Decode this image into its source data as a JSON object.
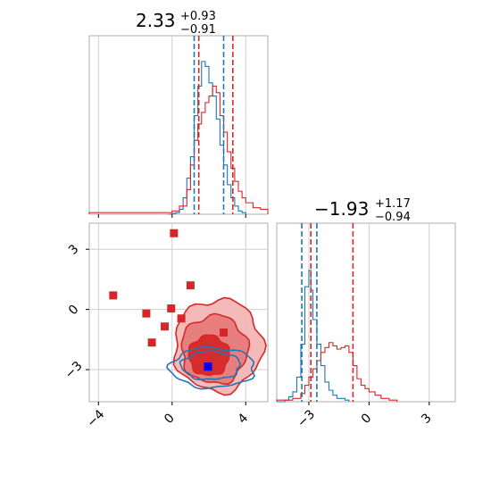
{
  "chart_data": {
    "type": "corner",
    "colors": {
      "series_a": "#1f77b4",
      "series_b": "#d62728",
      "grid": "#cfcfcf",
      "axis": "#000000"
    },
    "series": [],
    "panels": {
      "p1": {
        "type": "histogram",
        "xlim": [
          -4.5,
          5.2
        ],
        "grid_x": [
          -4,
          0,
          4
        ],
        "title": {
          "main": "2.33",
          "sup": "+0.93",
          "sub": "−0.91"
        },
        "quantile_lines_blue": [
          1.2,
          2.8
        ],
        "quantile_lines_red": [
          1.45,
          3.3
        ],
        "hist_blue": [
          [
            -0.2,
            0
          ],
          [
            0.0,
            0.005
          ],
          [
            0.2,
            0.01
          ],
          [
            0.4,
            0.03
          ],
          [
            0.6,
            0.1
          ],
          [
            0.8,
            0.22
          ],
          [
            1.0,
            0.35
          ],
          [
            1.2,
            0.6
          ],
          [
            1.4,
            0.78
          ],
          [
            1.6,
            0.93
          ],
          [
            1.8,
            0.9
          ],
          [
            2.0,
            0.8
          ],
          [
            2.2,
            0.72
          ],
          [
            2.4,
            0.58
          ],
          [
            2.6,
            0.42
          ],
          [
            2.8,
            0.3
          ],
          [
            3.0,
            0.18
          ],
          [
            3.2,
            0.1
          ],
          [
            3.4,
            0.05
          ],
          [
            3.6,
            0.02
          ],
          [
            3.8,
            0.01
          ],
          [
            4.0,
            0
          ]
        ],
        "hist_red": [
          [
            -4.5,
            0.01
          ],
          [
            -3.0,
            0.01
          ],
          [
            -1.0,
            0.01
          ],
          [
            0.0,
            0.02
          ],
          [
            0.4,
            0.05
          ],
          [
            0.8,
            0.15
          ],
          [
            1.0,
            0.3
          ],
          [
            1.2,
            0.45
          ],
          [
            1.4,
            0.55
          ],
          [
            1.6,
            0.62
          ],
          [
            1.8,
            0.68
          ],
          [
            2.0,
            0.72
          ],
          [
            2.2,
            0.78
          ],
          [
            2.4,
            0.74
          ],
          [
            2.6,
            0.6
          ],
          [
            2.8,
            0.5
          ],
          [
            3.0,
            0.38
          ],
          [
            3.2,
            0.28
          ],
          [
            3.4,
            0.2
          ],
          [
            3.6,
            0.14
          ],
          [
            3.8,
            0.1
          ],
          [
            4.0,
            0.07
          ],
          [
            4.4,
            0.04
          ],
          [
            4.8,
            0.03
          ],
          [
            5.2,
            0.02
          ]
        ]
      },
      "p2": {
        "type": "scatter_contour",
        "xlim": [
          -4.5,
          5.2
        ],
        "ylim": [
          -4.6,
          4.3
        ],
        "grid_x": [
          -4,
          0,
          4
        ],
        "grid_y": [
          -3,
          0,
          3
        ],
        "x_tick_labels": [
          {
            "value": -4,
            "label": "−4"
          },
          {
            "value": 0,
            "label": "0"
          },
          {
            "value": 4,
            "label": "4"
          }
        ],
        "y_tick_labels": [
          {
            "value": 3,
            "label": "3"
          },
          {
            "value": 0,
            "label": "0"
          },
          {
            "value": -3,
            "label": "−3"
          }
        ],
        "red_points": [
          {
            "x": 0.1,
            "y": 3.8
          },
          {
            "x": -3.2,
            "y": 0.7
          },
          {
            "x": 1.0,
            "y": 1.2
          },
          {
            "x": -1.4,
            "y": -0.2
          },
          {
            "x": -0.05,
            "y": 0.05
          },
          {
            "x": 0.5,
            "y": -0.45
          },
          {
            "x": -0.4,
            "y": -0.85
          },
          {
            "x": 2.8,
            "y": -1.15
          },
          {
            "x": -1.1,
            "y": -1.65
          }
        ],
        "blue_point": {
          "x": 1.95,
          "y": -2.85
        },
        "red_contours": [
          {
            "cx": 2.5,
            "cy": -1.8,
            "rx": 2.4,
            "ry": 2.3
          },
          {
            "cx": 2.3,
            "cy": -2.0,
            "rx": 1.8,
            "ry": 1.7
          },
          {
            "cx": 2.0,
            "cy": -2.3,
            "rx": 1.1,
            "ry": 1.0
          }
        ],
        "blue_contours": [
          {
            "cx": 2.1,
            "cy": -2.8,
            "rx": 1.6,
            "ry": 0.7
          },
          {
            "cx": 2.2,
            "cy": -2.9,
            "rx": 2.3,
            "ry": 1.0
          }
        ]
      },
      "p3": {
        "type": "histogram",
        "xlim": [
          -4.6,
          4.3
        ],
        "grid_x": [
          -3,
          0,
          3
        ],
        "x_tick_labels": [
          {
            "value": -3,
            "label": "−3"
          },
          {
            "value": 0,
            "label": "0"
          },
          {
            "value": 3,
            "label": "3"
          }
        ],
        "title": {
          "main": "−1.93",
          "sup": "+1.17",
          "sub": "−0.94"
        },
        "quantile_lines_blue": [
          -3.35,
          -2.6
        ],
        "quantile_lines_red": [
          -2.9,
          -0.8
        ],
        "hist_blue": [
          [
            -4.6,
            0
          ],
          [
            -4.2,
            0.01
          ],
          [
            -4.0,
            0.03
          ],
          [
            -3.8,
            0.06
          ],
          [
            -3.6,
            0.15
          ],
          [
            -3.4,
            0.35
          ],
          [
            -3.2,
            0.7
          ],
          [
            -3.0,
            0.8
          ],
          [
            -2.9,
            0.68
          ],
          [
            -2.8,
            0.5
          ],
          [
            -2.6,
            0.35
          ],
          [
            -2.4,
            0.22
          ],
          [
            -2.2,
            0.12
          ],
          [
            -2.0,
            0.07
          ],
          [
            -1.8,
            0.04
          ],
          [
            -1.6,
            0.02
          ],
          [
            -1.2,
            0.01
          ],
          [
            -1.0,
            0
          ]
        ],
        "hist_red": [
          [
            -4.6,
            0.01
          ],
          [
            -3.8,
            0.02
          ],
          [
            -3.4,
            0.05
          ],
          [
            -3.2,
            0.1
          ],
          [
            -3.0,
            0.15
          ],
          [
            -2.8,
            0.2
          ],
          [
            -2.6,
            0.25
          ],
          [
            -2.4,
            0.3
          ],
          [
            -2.2,
            0.33
          ],
          [
            -2.0,
            0.36
          ],
          [
            -1.8,
            0.34
          ],
          [
            -1.6,
            0.32
          ],
          [
            -1.4,
            0.33
          ],
          [
            -1.2,
            0.34
          ],
          [
            -1.0,
            0.3
          ],
          [
            -0.8,
            0.22
          ],
          [
            -0.6,
            0.14
          ],
          [
            -0.4,
            0.1
          ],
          [
            -0.2,
            0.08
          ],
          [
            0.0,
            0.06
          ],
          [
            0.3,
            0.04
          ],
          [
            0.6,
            0.02
          ],
          [
            1.0,
            0.01
          ],
          [
            1.4,
            0
          ]
        ]
      }
    }
  }
}
